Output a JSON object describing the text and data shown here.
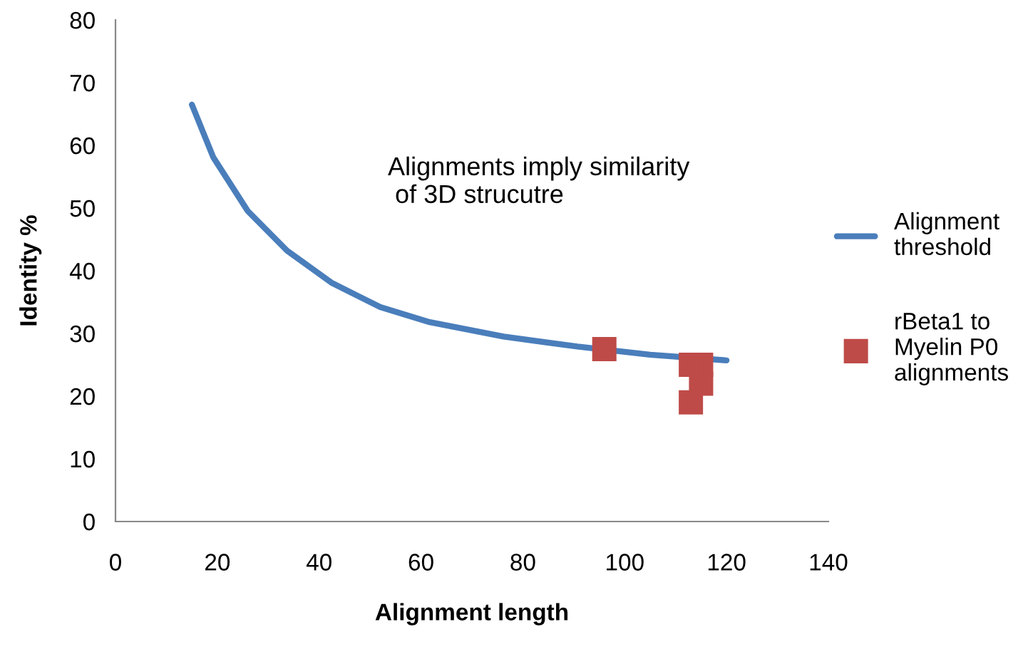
{
  "chart_data": {
    "type": "line",
    "xlabel": "Alignment length",
    "ylabel": "Identity %",
    "annotations": [
      "Alignments imply similarity\n of 3D strucutre"
    ],
    "xlim": [
      0,
      140
    ],
    "xticks": [
      0,
      20,
      40,
      60,
      80,
      100,
      120,
      140
    ],
    "ylim": [
      0,
      80
    ],
    "yticks": [
      0,
      10,
      20,
      30,
      40,
      50,
      60,
      70,
      80
    ],
    "grid": false,
    "legend": "right",
    "series": [
      {
        "name": "Alignment threshold",
        "color": "#4a7ebb",
        "marker": "none",
        "x": [
          15,
          19.2,
          26,
          33.7,
          42.4,
          52,
          61.7,
          76.2,
          90.7,
          105,
          120
        ],
        "values": [
          66.5,
          58.1,
          49.5,
          43.2,
          38.1,
          34.2,
          31.8,
          29.5,
          27.9,
          26.6,
          25.7
        ]
      },
      {
        "name": "rBeta1 to Myelin P0 alignments",
        "type": "scatter",
        "color": "#be4b48",
        "marker": "square",
        "x": [
          96,
          113,
          115,
          115,
          113
        ],
        "values": [
          27.5,
          25,
          25,
          22,
          19
        ]
      }
    ]
  }
}
